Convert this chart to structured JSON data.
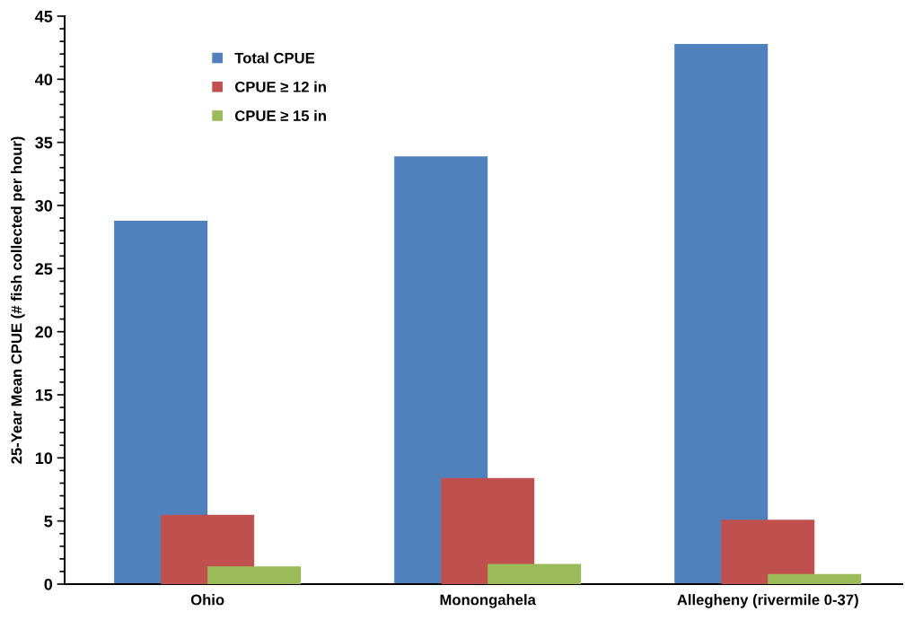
{
  "chart_data": {
    "type": "bar",
    "ylabel": "25-Year Mean CPUE (# fish collected per hour)",
    "categories": [
      "Ohio",
      "Monongahela",
      "Allegheny (rivermile 0-37)"
    ],
    "series": [
      {
        "name": "Total CPUE",
        "color": "#4f81bd",
        "values": [
          28.8,
          33.9,
          42.8
        ]
      },
      {
        "name": "CPUE ≥ 12 in",
        "color": "#c0504d",
        "values": [
          5.5,
          8.4,
          5.1
        ]
      },
      {
        "name": "CPUE ≥ 15 in",
        "color": "#9bbb59",
        "values": [
          1.4,
          1.6,
          0.8
        ]
      }
    ],
    "ylim": [
      0,
      45
    ],
    "yticks": [
      0,
      5,
      10,
      15,
      20,
      25,
      30,
      35,
      40,
      45
    ],
    "grid": false,
    "legend": "top left"
  }
}
